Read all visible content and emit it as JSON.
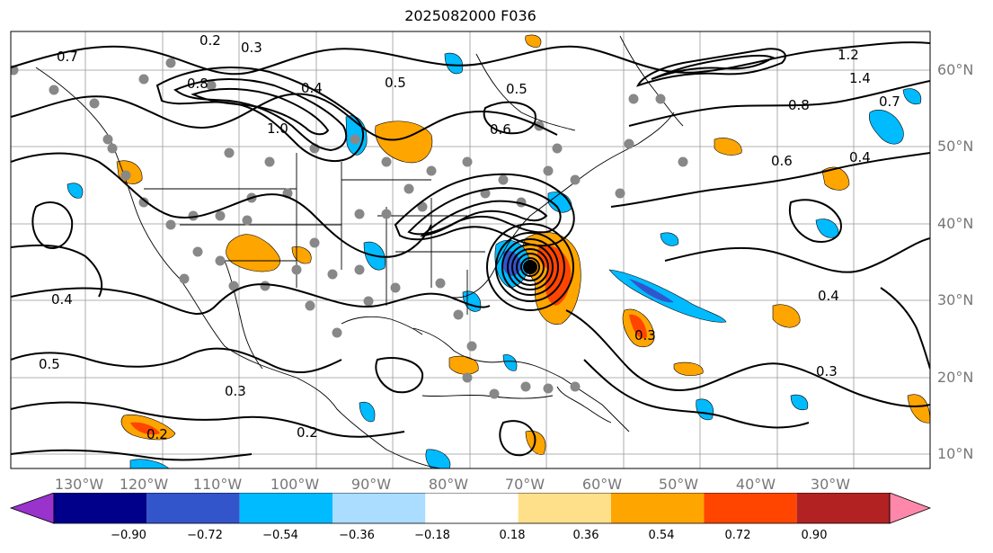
{
  "title": "2025082000 F036",
  "lat_labels": [
    "60°N",
    "50°N",
    "40°N",
    "30°N",
    "20°N",
    "10°N"
  ],
  "lon_labels": [
    "130°W",
    "120°W",
    "110°W",
    "100°W",
    "90°W",
    "80°W",
    "70°W",
    "60°W",
    "50°W",
    "40°W",
    "30°W"
  ],
  "contour_labels": [
    "0.2",
    "0.3",
    "0.4",
    "0.5",
    "0.6",
    "0.7",
    "0.8",
    "1.0",
    "1.2",
    "1.4",
    "0.3",
    "0.4",
    "0.5",
    "0.7",
    "0.2",
    "0.3",
    "0.4",
    "0.8",
    "0.6",
    "0.5",
    "0.4",
    "0.2",
    "0.3"
  ],
  "colorbar": {
    "ticks": [
      "−0.90",
      "−0.72",
      "−0.54",
      "−0.36",
      "−0.18",
      "0.18",
      "0.36",
      "0.54",
      "0.72",
      "0.90"
    ],
    "colors": [
      "#9933cc",
      "#00008b",
      "#3355cc",
      "#00bbff",
      "#aaddff",
      "#ffffff",
      "#ffe08a",
      "#ffa500",
      "#ff4500",
      "#b22222",
      "#ff88aa"
    ]
  }
}
